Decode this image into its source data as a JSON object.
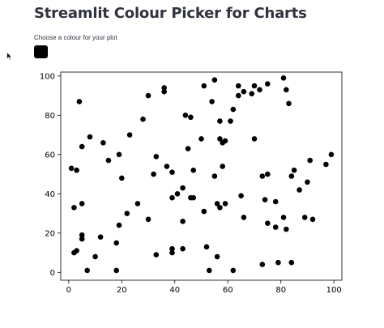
{
  "page": {
    "title": "Streamlit Colour Picker for Charts"
  },
  "color_picker": {
    "label": "Choose a colour for your plot",
    "value": "#000000"
  },
  "icons": {
    "cursor": "mouse-pointer-icon"
  },
  "chart_data": {
    "type": "scatter",
    "title": "",
    "xlabel": "",
    "ylabel": "",
    "xlim": [
      -3,
      103
    ],
    "ylim": [
      -4,
      102
    ],
    "xticks": [
      0,
      20,
      40,
      60,
      80,
      100
    ],
    "yticks": [
      0,
      20,
      40,
      60,
      80,
      100
    ],
    "grid": false,
    "marker_color": "#000000",
    "points": [
      [
        1,
        53
      ],
      [
        2,
        33
      ],
      [
        2,
        10
      ],
      [
        3,
        52
      ],
      [
        3,
        11
      ],
      [
        4,
        87
      ],
      [
        5,
        64
      ],
      [
        5,
        35
      ],
      [
        5,
        19
      ],
      [
        5,
        17
      ],
      [
        7,
        1
      ],
      [
        8,
        69
      ],
      [
        10,
        8
      ],
      [
        12,
        18
      ],
      [
        13,
        66
      ],
      [
        15,
        57
      ],
      [
        18,
        15
      ],
      [
        18,
        1
      ],
      [
        19,
        60
      ],
      [
        19,
        24
      ],
      [
        20,
        48
      ],
      [
        22,
        30
      ],
      [
        23,
        70
      ],
      [
        26,
        35
      ],
      [
        28,
        78
      ],
      [
        30,
        90
      ],
      [
        30,
        27
      ],
      [
        32,
        50
      ],
      [
        33,
        59
      ],
      [
        33,
        9
      ],
      [
        36,
        94
      ],
      [
        36,
        92
      ],
      [
        37,
        54
      ],
      [
        39,
        51
      ],
      [
        39,
        38
      ],
      [
        39,
        12
      ],
      [
        39,
        10
      ],
      [
        41,
        40
      ],
      [
        43,
        43
      ],
      [
        43,
        12
      ],
      [
        43,
        26
      ],
      [
        44,
        80
      ],
      [
        45,
        63
      ],
      [
        46,
        79
      ],
      [
        46,
        38
      ],
      [
        47,
        38
      ],
      [
        47,
        52
      ],
      [
        50,
        68
      ],
      [
        51,
        95
      ],
      [
        51,
        31
      ],
      [
        52,
        13
      ],
      [
        53,
        1
      ],
      [
        54,
        87
      ],
      [
        55,
        98
      ],
      [
        55,
        49
      ],
      [
        56,
        35
      ],
      [
        56,
        8
      ],
      [
        57,
        68
      ],
      [
        57,
        77
      ],
      [
        57,
        33
      ],
      [
        58,
        66
      ],
      [
        58,
        54
      ],
      [
        59,
        35
      ],
      [
        59,
        67
      ],
      [
        61,
        77
      ],
      [
        62,
        83
      ],
      [
        62,
        1
      ],
      [
        64,
        95
      ],
      [
        64,
        90
      ],
      [
        65,
        39
      ],
      [
        66,
        92
      ],
      [
        66,
        28
      ],
      [
        69,
        91
      ],
      [
        70,
        95
      ],
      [
        70,
        68
      ],
      [
        72,
        93
      ],
      [
        73,
        4
      ],
      [
        73,
        49
      ],
      [
        74,
        37
      ],
      [
        75,
        96
      ],
      [
        75,
        50
      ],
      [
        75,
        25
      ],
      [
        78,
        36
      ],
      [
        78,
        23
      ],
      [
        79,
        5
      ],
      [
        81,
        99
      ],
      [
        81,
        28
      ],
      [
        82,
        22
      ],
      [
        82,
        93
      ],
      [
        83,
        86
      ],
      [
        84,
        5
      ],
      [
        84,
        49
      ],
      [
        85,
        52
      ],
      [
        87,
        42
      ],
      [
        89,
        28
      ],
      [
        90,
        46
      ],
      [
        91,
        57
      ],
      [
        92,
        27
      ],
      [
        97,
        55
      ],
      [
        99,
        60
      ]
    ]
  }
}
